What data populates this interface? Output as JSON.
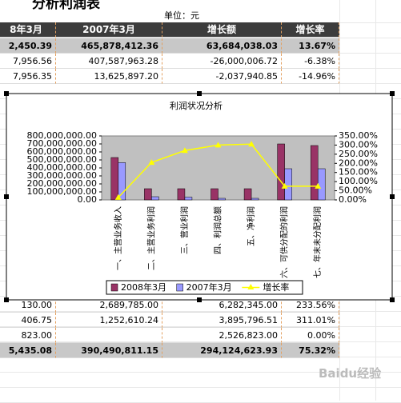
{
  "sheet": {
    "title": "分析利润表",
    "unit": "单位：元",
    "header": [
      "8年3月",
      "2007年3月",
      "增长额",
      "增长率"
    ],
    "rows_top": [
      [
        "2,450.39",
        "465,878,412.36",
        "63,684,038.03",
        "13.67%"
      ],
      [
        "7,956.56",
        "407,587,963.28",
        "-26,000,006.72",
        "-6.38%"
      ],
      [
        "7,956.35",
        "13,625,897.20",
        "-2,037,940.85",
        "-14.96%"
      ]
    ],
    "rows_bottom": [
      [
        "130.00",
        "2,689,785.00",
        "6,282,345.00",
        "233.56%"
      ],
      [
        "406.75",
        "1,252,610.24",
        "3,895,796.51",
        "311.01%"
      ],
      [
        "823.00",
        "",
        "2,526,823.00",
        "0.00%"
      ],
      [
        "5,435.08",
        "390,490,811.15",
        "294,124,623.93",
        "75.32%"
      ]
    ],
    "watermark": "Baidu经验"
  },
  "chart_data": {
    "type": "bar",
    "title": "利润状况分析",
    "categories": [
      "一、主营业务收入",
      "二、主营业务利润",
      "三、营业利润",
      "四、利润总额",
      "五、净利润",
      "六、可供分配的利润",
      "七、年末未分配利润"
    ],
    "series": [
      {
        "name": "2008年3月",
        "color": "#993366",
        "values": [
          530000000,
          140000000,
          140000000,
          140000000,
          140000000,
          700000000,
          680000000
        ]
      },
      {
        "name": "2007年3月",
        "color": "#9999ff",
        "values": [
          466000000,
          40000000,
          35000000,
          20000000,
          20000000,
          390000000,
          390000000
        ]
      },
      {
        "name": "增长率",
        "color": "#ffff00",
        "type": "line",
        "axis": "y2",
        "values": [
          13.67,
          205,
          270,
          300,
          305,
          75,
          75
        ]
      }
    ],
    "ylim": [
      0,
      800000000
    ],
    "yticks": [
      {
        "value": 0,
        "label": "0.00"
      },
      {
        "value": 100000000,
        "label": "100,000,000.00"
      },
      {
        "value": 200000000,
        "label": "200,000,000.00"
      },
      {
        "value": 300000000,
        "label": "300,000,000.00"
      },
      {
        "value": 400000000,
        "label": "400,000,000.00"
      },
      {
        "value": 500000000,
        "label": "500,000,000.00"
      },
      {
        "value": 600000000,
        "label": "600,000,000.00"
      },
      {
        "value": 700000000,
        "label": "700,000,000.00"
      },
      {
        "value": 800000000,
        "label": "800,000,000.00"
      }
    ],
    "y2lim": [
      0,
      350
    ],
    "y2ticks": [
      {
        "value": 0,
        "label": "0.00%"
      },
      {
        "value": 50,
        "label": "50.00%"
      },
      {
        "value": 100,
        "label": "100.00%"
      },
      {
        "value": 150,
        "label": "150.00%"
      },
      {
        "value": 200,
        "label": "200.00%"
      },
      {
        "value": 250,
        "label": "250.00%"
      },
      {
        "value": 300,
        "label": "300.00%"
      },
      {
        "value": 350,
        "label": "350.00%"
      }
    ],
    "grid": false,
    "plot_background": "#c0c0c0",
    "legend": "bottom"
  }
}
